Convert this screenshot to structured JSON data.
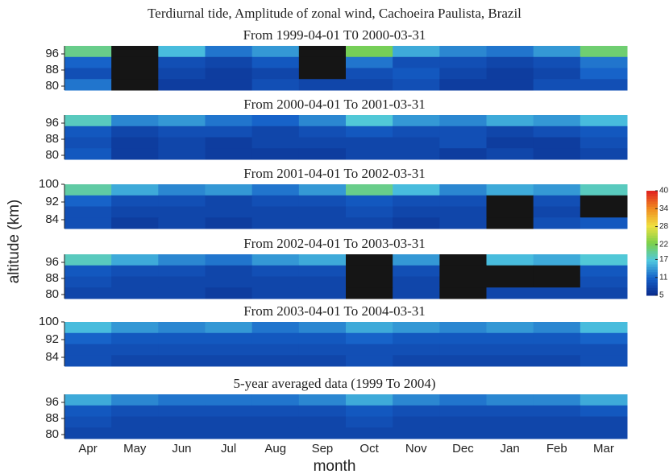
{
  "chart_data": {
    "type": "heatmap",
    "title": "Terdiurnal tide, Amplitude of zonal wind, Cachoeira Paulista, Brazil",
    "xlabel": "month",
    "ylabel": "altitude (km)",
    "categories": [
      "Apr",
      "May",
      "Jun",
      "Jul",
      "Aug",
      "Sep",
      "Oct",
      "Nov",
      "Dec",
      "Jan",
      "Feb",
      "Mar"
    ],
    "colorbar": {
      "lim": [
        5,
        40
      ],
      "ticks": [
        5,
        11,
        17,
        22,
        28,
        34,
        40
      ],
      "colors": [
        "#0a2a8a",
        "#1560c8",
        "#4fc8e0",
        "#7ad04a",
        "#f0e040",
        "#f08a20",
        "#e02020"
      ]
    },
    "missing_color": "#151515",
    "panels": [
      {
        "subtitle": "From 1999-04-01 T0 2000-03-31",
        "ylim": [
          78,
          100
        ],
        "yticks": [
          80,
          88,
          96
        ],
        "values": [
          [
            20,
            null,
            16,
            12,
            14,
            null,
            22,
            15,
            13,
            12,
            14,
            21
          ],
          [
            11,
            null,
            9,
            8,
            10,
            null,
            12,
            9,
            9,
            8,
            9,
            12
          ],
          [
            9,
            null,
            8,
            7,
            8,
            null,
            9,
            10,
            8,
            7,
            8,
            11
          ],
          [
            12,
            null,
            7,
            7,
            9,
            8,
            8,
            9,
            7,
            7,
            9,
            9
          ]
        ]
      },
      {
        "subtitle": "From 2000-04-01 To 2001-03-31",
        "ylim": [
          78,
          100
        ],
        "yticks": [
          80,
          88,
          96
        ],
        "values": [
          [
            18,
            13,
            14,
            12,
            11,
            13,
            17,
            14,
            13,
            15,
            14,
            16
          ],
          [
            10,
            8,
            9,
            9,
            8,
            9,
            10,
            9,
            9,
            8,
            9,
            10
          ],
          [
            9,
            7,
            8,
            7,
            8,
            8,
            8,
            8,
            9,
            7,
            7,
            9
          ],
          [
            10,
            7,
            8,
            7,
            7,
            7,
            8,
            8,
            7,
            8,
            7,
            8
          ]
        ]
      },
      {
        "subtitle": "From 2001-04-01 To 2002-03-31",
        "ylim": [
          80,
          100
        ],
        "yticks": [
          84,
          92,
          100
        ],
        "values": [
          [
            19,
            15,
            13,
            14,
            12,
            14,
            20,
            16,
            13,
            15,
            14,
            18
          ],
          [
            11,
            9,
            9,
            8,
            9,
            9,
            10,
            9,
            9,
            null,
            9,
            null
          ],
          [
            9,
            8,
            8,
            8,
            8,
            8,
            9,
            8,
            8,
            null,
            8,
            null
          ],
          [
            9,
            7,
            8,
            7,
            8,
            8,
            8,
            7,
            8,
            null,
            9,
            10
          ]
        ]
      },
      {
        "subtitle": "From 2002-04-01 To 2003-03-31",
        "ylim": [
          78,
          100
        ],
        "yticks": [
          80,
          88,
          96
        ],
        "values": [
          [
            18,
            15,
            13,
            12,
            14,
            15,
            null,
            14,
            null,
            16,
            15,
            17
          ],
          [
            10,
            9,
            9,
            8,
            9,
            9,
            null,
            9,
            null,
            null,
            null,
            10
          ],
          [
            9,
            8,
            8,
            8,
            8,
            8,
            null,
            8,
            null,
            null,
            null,
            9
          ],
          [
            8,
            8,
            8,
            7,
            8,
            8,
            null,
            8,
            null,
            8,
            8,
            8
          ]
        ]
      },
      {
        "subtitle": "From 2003-04-01 To 2004-03-31",
        "ylim": [
          80,
          100
        ],
        "yticks": [
          84,
          92,
          100
        ],
        "values": [
          [
            16,
            14,
            13,
            14,
            12,
            13,
            15,
            14,
            13,
            14,
            13,
            16
          ],
          [
            11,
            10,
            10,
            10,
            10,
            10,
            11,
            10,
            10,
            10,
            10,
            11
          ],
          [
            9,
            9,
            9,
            9,
            9,
            9,
            9,
            9,
            9,
            9,
            9,
            9
          ],
          [
            9,
            8,
            8,
            8,
            8,
            8,
            9,
            8,
            8,
            8,
            8,
            9
          ]
        ]
      },
      {
        "subtitle": "5-year averaged data (1999 To 2004)",
        "ylim": [
          78,
          100
        ],
        "yticks": [
          80,
          88,
          96
        ],
        "values": [
          [
            15,
            13,
            12,
            12,
            12,
            13,
            15,
            13,
            12,
            13,
            13,
            15
          ],
          [
            10,
            9,
            9,
            9,
            9,
            9,
            10,
            9,
            9,
            9,
            9,
            10
          ],
          [
            9,
            8,
            8,
            8,
            8,
            8,
            9,
            8,
            8,
            8,
            8,
            8
          ],
          [
            8,
            8,
            8,
            8,
            8,
            8,
            8,
            8,
            8,
            8,
            8,
            8
          ]
        ]
      }
    ]
  }
}
